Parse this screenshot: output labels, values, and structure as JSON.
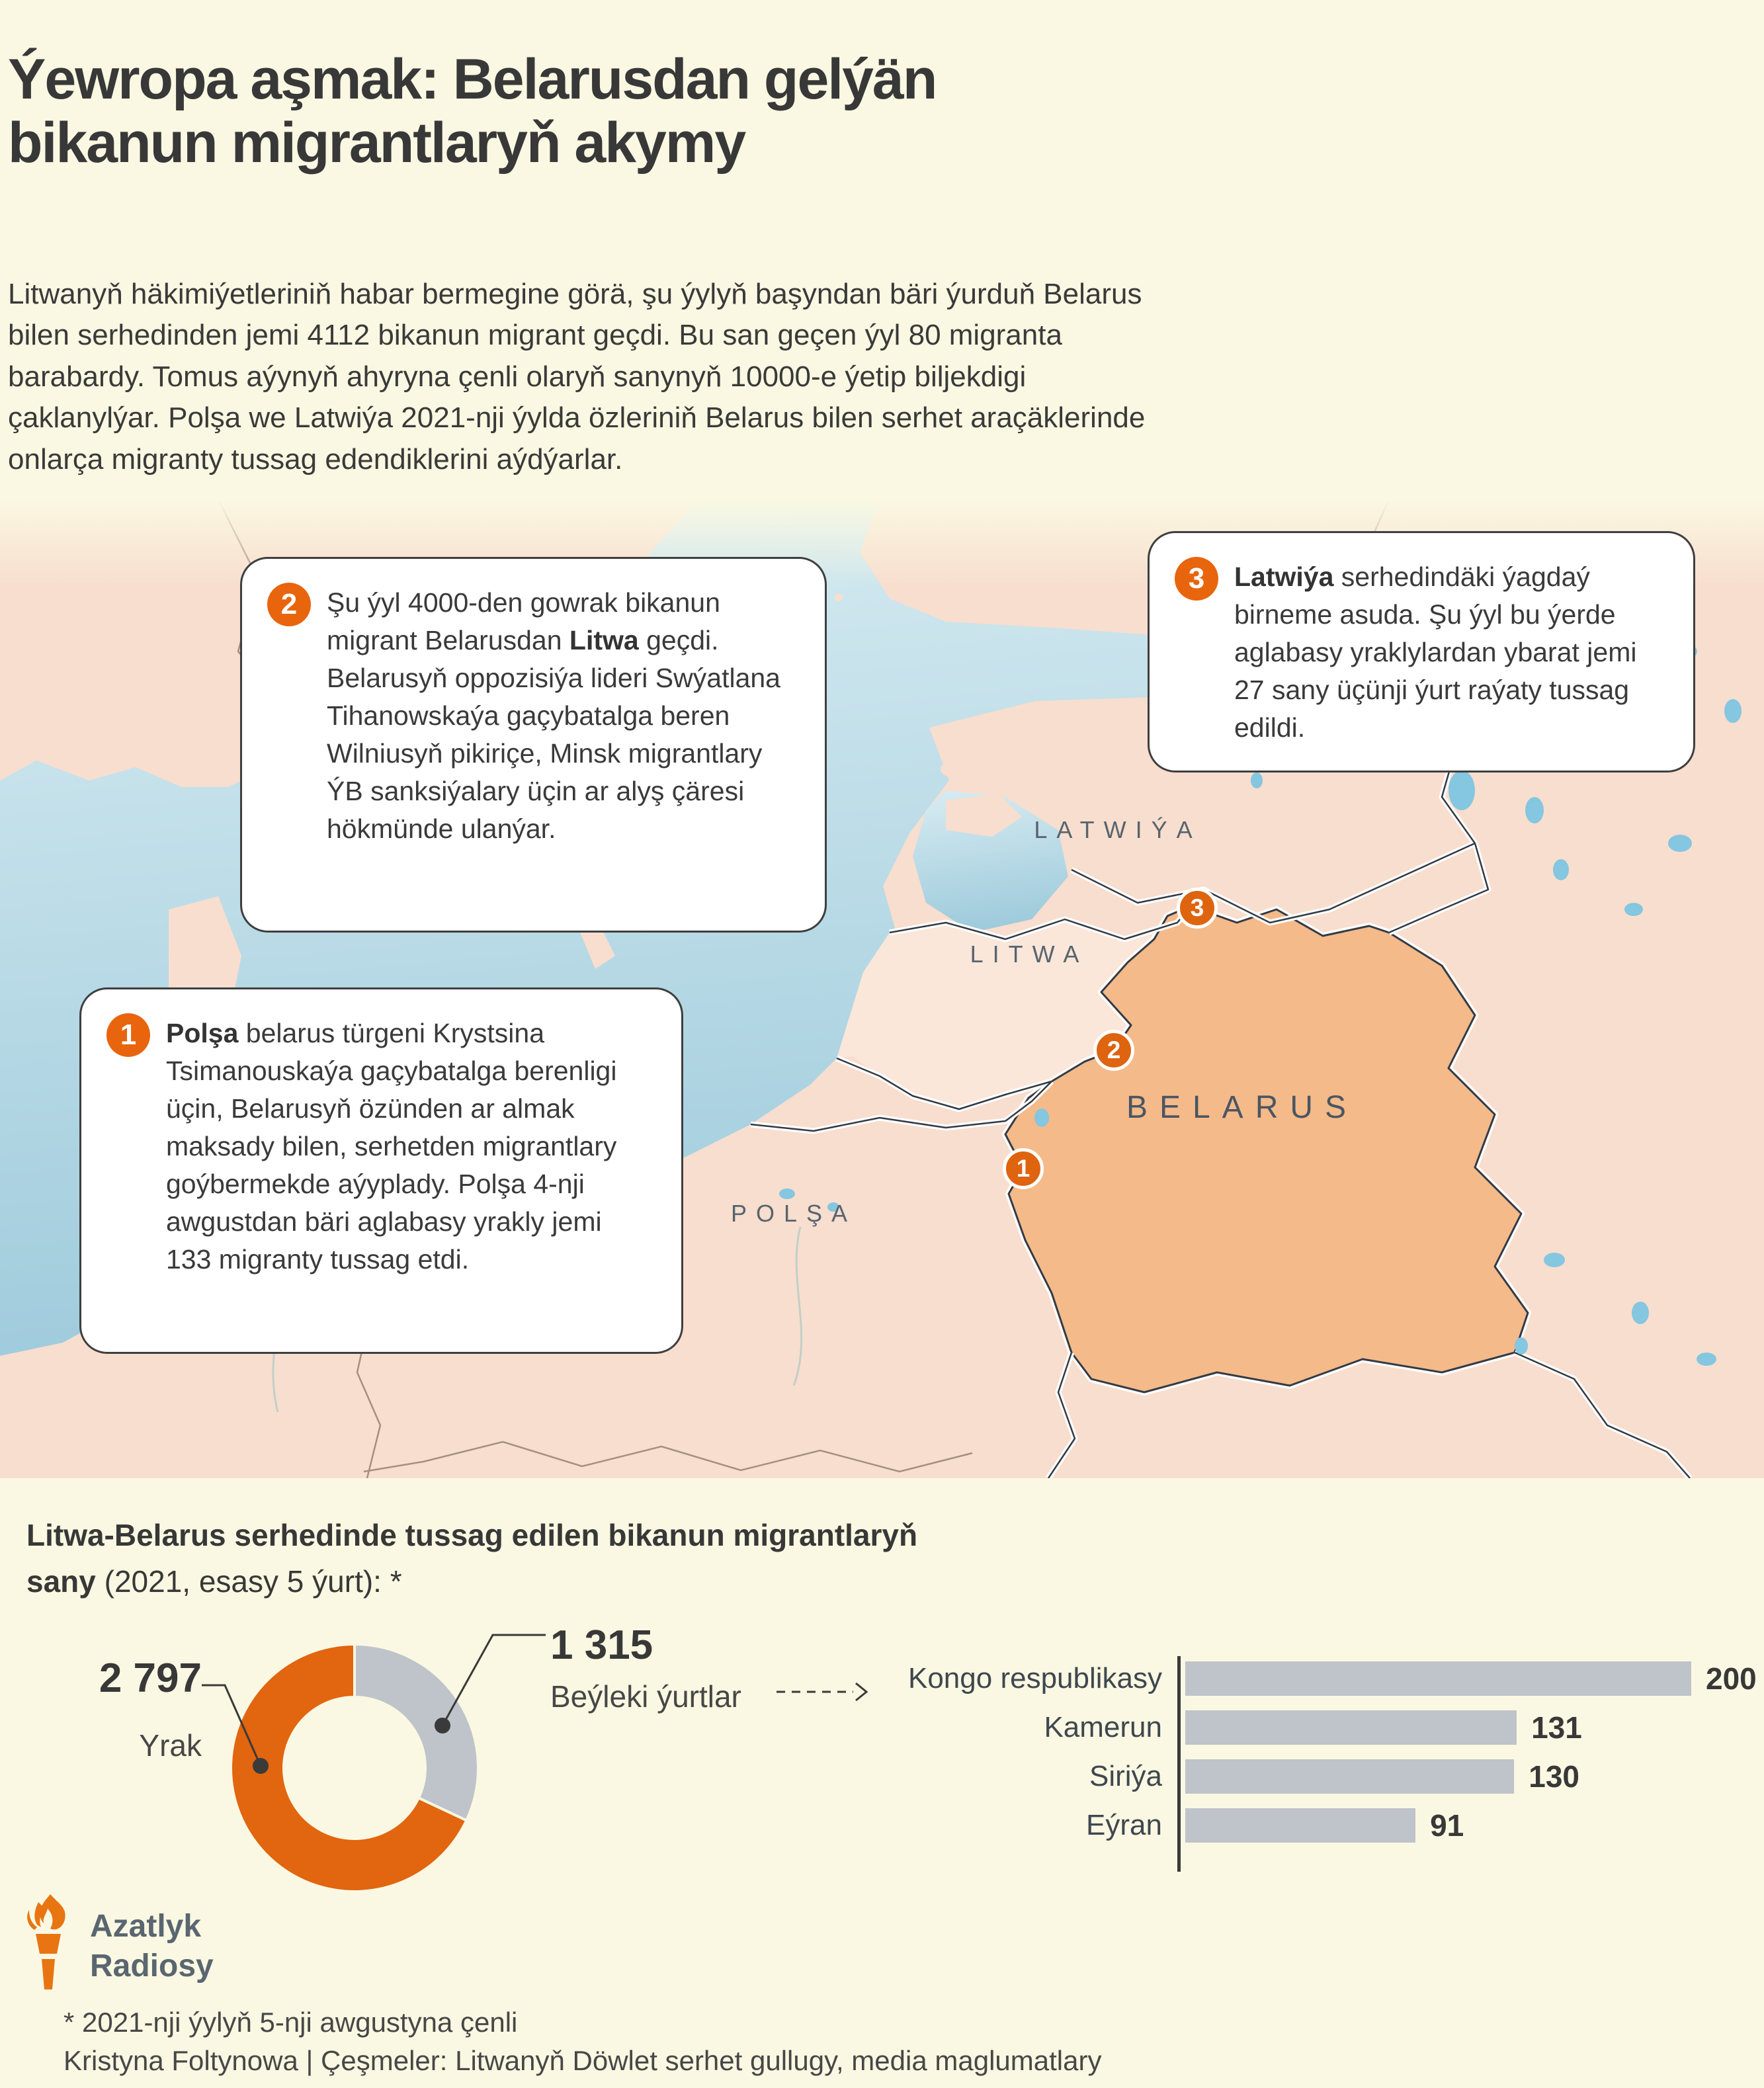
{
  "header": {
    "title": "Ýewropa aşmak: Belarusdan gelýän bikanun migrantlaryň akymy",
    "intro": "Litwanyň häkimiýetleriniň habar bermegine görä, şu ýylyň başyndan bäri ýurduň Belarus bilen serhedinden jemi 4112 bikanun migrant geçdi. Bu san geçen ýyl 80 migranta barabardy. Tomus aýynyň ahyryna çenli olaryň sanynyň 10000-e ýetip biljekdigi çaklanylýar. Polşa we Latwiýa 2021-nji ýylda özleriniň Belarus bilen serhet araçäklerinde onlarça migranty tussag edendiklerini aýdýarlar."
  },
  "map": {
    "labels": {
      "latwiya": "LATWIÝA",
      "litwa": "LITWA",
      "belarus": "BELARUS",
      "polsha": "POLŞA"
    },
    "markers": [
      {
        "number": "1"
      },
      {
        "number": "2"
      },
      {
        "number": "3"
      }
    ],
    "callouts": [
      {
        "number": "1",
        "pre": "",
        "bold": "Polşa",
        "post": " belarus türgeni Krystsina Tsimanouskaýa gaçybatalga berenligi üçin, Belarusyň özünden ar almak maksady bilen, serhetden migrantlary goýbermekde aýyplady. Polşa 4-nji awgustdan bäri aglabasy yrakly jemi 133 migranty tussag etdi."
      },
      {
        "number": "2",
        "pre": "Şu ýyl 4000-den gowrak bikanun migrant Belarusdan ",
        "bold": "Litwa",
        "post": " geçdi. Belarusyň oppozisiýa lideri Swýatlana Tihanowskaýa gaçybatalga beren Wilniusyň pikiriçe, Minsk migrantlary ÝB sanksiýalary üçin ar alyş çäresi hökmünde ulanýar."
      },
      {
        "number": "3",
        "pre": "",
        "bold": "Latwiýa",
        "post": " serhedindäki ýagdaý birneme asuda. Şu ýyl bu ýerde aglabasy yraklylardan ybarat jemi 27 sany üçünji ýurt raýaty tussag edildi."
      }
    ]
  },
  "chart": {
    "title_bold": "Litwa-Belarus serhedinde tussag edilen bikanun migrantlaryň sany ",
    "title_rest": "(2021, esasy 5 ýurt): *",
    "donut": {
      "value_other": "1 315",
      "label_other": "Beýleki ýurtlar",
      "value_iraq": "2 797",
      "label_iraq": "Yrak"
    }
  },
  "chart_data": [
    {
      "type": "pie",
      "donut": true,
      "title": "Litwa-Belarus serhedinde tussag edilen bikanun migrantlaryň sany (2021, esasy 5 ýurt): *",
      "labels": [
        "Beýleki ýurtlar",
        "Yrak"
      ],
      "values": [
        1315,
        2797
      ],
      "display_values": [
        "1 315",
        "2 797"
      ],
      "colors": [
        "#BFC3CA",
        "#E2650F"
      ],
      "start": "12 o'clock, clockwise",
      "total": 4112
    },
    {
      "type": "bar",
      "orientation": "horizontal",
      "categories": [
        "Kongo respublikasy",
        "Kamerun",
        "Siriýa",
        "Eýran"
      ],
      "values": [
        200,
        131,
        130,
        91
      ],
      "color": "#BFC3CA",
      "xlim": [
        0,
        200
      ],
      "legend": "none",
      "grid": false
    }
  ],
  "footer": {
    "logo_line1": "Azatlyk",
    "logo_line2": "Radiosy",
    "footnote1": "* 2021-nji ýylyň 5-nji awgustyna çenli",
    "footnote2": "Kristyna Foltynowa | Çeşmeler: Litwanyň Döwlet serhet gullugy, media maglumatlary"
  }
}
